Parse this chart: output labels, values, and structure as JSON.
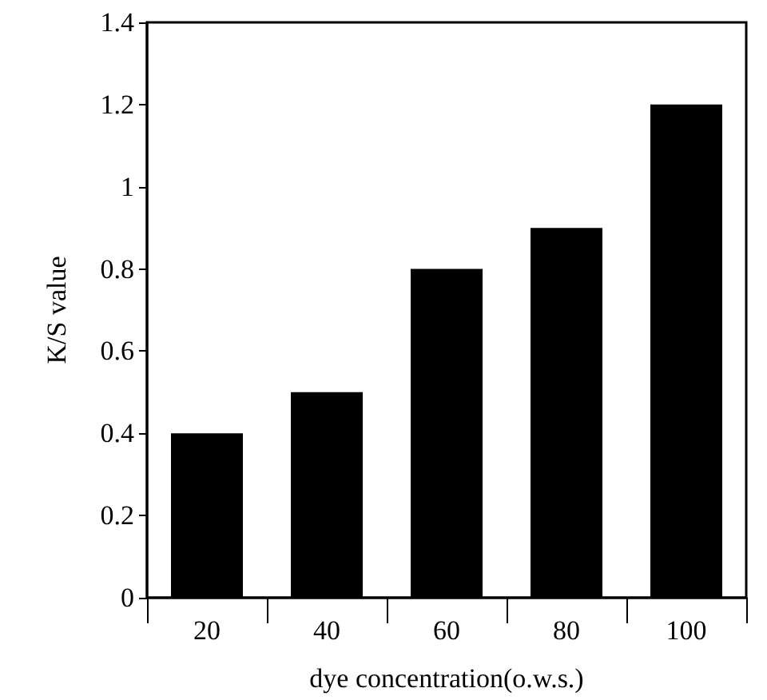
{
  "chart_data": {
    "type": "bar",
    "xlabel": "dye concentration(o.w.s.)",
    "ylabel": "K/S value",
    "categories": [
      "20",
      "40",
      "60",
      "80",
      "100"
    ],
    "values": [
      0.4,
      0.5,
      0.8,
      0.9,
      1.2
    ],
    "color": "#000000",
    "ylim": [
      0,
      1.4
    ],
    "yticks": [
      0,
      0.2,
      0.4,
      0.6,
      0.8,
      1,
      1.2,
      1.4
    ],
    "grid": false
  }
}
